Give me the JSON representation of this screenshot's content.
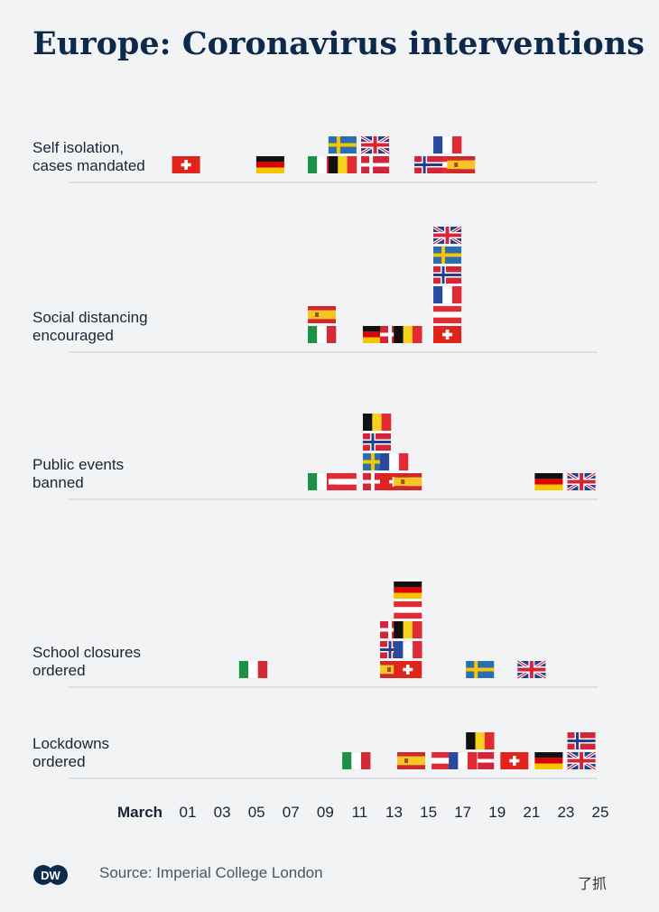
{
  "header": {
    "title": "Europe: Coronavirus interventions"
  },
  "footer": {
    "source": "Source: Imperial College London",
    "logo_text": "DW",
    "watermark": "了抓"
  },
  "flag_colors": {
    "switzerland": "#e1241b",
    "germany": [
      "#111111",
      "#dd0000",
      "#f6c700"
    ],
    "italy": [
      "#1d9143",
      "#ffffff",
      "#d32b36"
    ],
    "belgium": [
      "#111111",
      "#f6d21c",
      "#e12b30"
    ],
    "sweden": [
      "#2a6db0",
      "#f6c700"
    ],
    "denmark": [
      "#d3243a",
      "#ffffff"
    ],
    "uk": [
      "#1f3f8f",
      "#ffffff",
      "#d3243a"
    ],
    "austria": [
      "#e12a36",
      "#ffffff"
    ],
    "france": [
      "#2a4aa0",
      "#ffffff",
      "#e12a36"
    ],
    "norway": [
      "#d3243a",
      "#ffffff",
      "#1f3f8f"
    ],
    "spain": [
      "#cf2a29",
      "#f7c624"
    ]
  },
  "chart_data": {
    "type": "scatter",
    "title": "Europe: Coronavirus interventions",
    "xlabel": "March",
    "x_ticks": [
      "01",
      "03",
      "05",
      "07",
      "09",
      "11",
      "13",
      "15",
      "17",
      "19",
      "21",
      "23",
      "25"
    ],
    "xlim": [
      0,
      25
    ],
    "categories": [
      "Self isolation, cases mandated",
      "Social distancing encouraged",
      "Public events banned",
      "School closures ordered",
      "Lockdowns ordered"
    ],
    "category_lines": [
      [
        "Self isolation,",
        "cases mandated"
      ],
      [
        "Social distancing",
        "encouraged"
      ],
      [
        "Public events",
        "banned"
      ],
      [
        "School closures",
        "ordered"
      ],
      [
        "Lockdowns",
        "ordered"
      ]
    ],
    "series": [
      {
        "category": "Self isolation, cases mandated",
        "points": [
          {
            "country": "switzerland",
            "march_day": 0.9
          },
          {
            "country": "germany",
            "march_day": 5.8
          },
          {
            "country": "italy",
            "march_day": 8.8
          },
          {
            "country": "belgium",
            "march_day": 10.0
          },
          {
            "country": "sweden",
            "march_day": 10.0
          },
          {
            "country": "denmark",
            "march_day": 11.9
          },
          {
            "country": "uk",
            "march_day": 11.9
          },
          {
            "country": "austria",
            "march_day": 16.1
          },
          {
            "country": "france",
            "march_day": 16.1
          },
          {
            "country": "norway",
            "march_day": 15.0
          },
          {
            "country": "spain",
            "march_day": 16.9
          }
        ]
      },
      {
        "category": "Social distancing encouraged",
        "points": [
          {
            "country": "italy",
            "march_day": 8.8
          },
          {
            "country": "spain",
            "march_day": 8.8
          },
          {
            "country": "germany",
            "march_day": 12.0
          },
          {
            "country": "denmark",
            "march_day": 13.0
          },
          {
            "country": "belgium",
            "march_day": 13.8
          },
          {
            "country": "switzerland",
            "march_day": 16.1
          },
          {
            "country": "austria",
            "march_day": 16.1
          },
          {
            "country": "france",
            "march_day": 16.1
          },
          {
            "country": "norway",
            "march_day": 16.1
          },
          {
            "country": "sweden",
            "march_day": 16.1
          },
          {
            "country": "uk",
            "march_day": 16.1
          }
        ]
      },
      {
        "category": "Public events banned",
        "points": [
          {
            "country": "italy",
            "march_day": 8.8
          },
          {
            "country": "austria",
            "march_day": 10.0
          },
          {
            "country": "denmark",
            "march_day": 12.0
          },
          {
            "country": "sweden",
            "march_day": 12.0
          },
          {
            "country": "norway",
            "march_day": 12.0
          },
          {
            "country": "belgium",
            "march_day": 12.0
          },
          {
            "country": "switzerland",
            "march_day": 13.0
          },
          {
            "country": "france",
            "march_day": 13.0
          },
          {
            "country": "spain",
            "march_day": 13.8
          },
          {
            "country": "germany",
            "march_day": 22.0
          },
          {
            "country": "uk",
            "march_day": 23.9
          }
        ]
      },
      {
        "category": "School closures ordered",
        "points": [
          {
            "country": "italy",
            "march_day": 4.8
          },
          {
            "country": "spain",
            "march_day": 13.0
          },
          {
            "country": "norway",
            "march_day": 13.0
          },
          {
            "country": "denmark",
            "march_day": 13.0
          },
          {
            "country": "switzerland",
            "march_day": 13.8
          },
          {
            "country": "france",
            "march_day": 13.8
          },
          {
            "country": "belgium",
            "march_day": 13.8
          },
          {
            "country": "austria",
            "march_day": 13.8
          },
          {
            "country": "germany",
            "march_day": 13.8
          },
          {
            "country": "sweden",
            "march_day": 18.0
          },
          {
            "country": "uk",
            "march_day": 21.0
          }
        ]
      },
      {
        "category": "Lockdowns ordered",
        "points": [
          {
            "country": "italy",
            "march_day": 10.8
          },
          {
            "country": "spain",
            "march_day": 14.0
          },
          {
            "country": "austria",
            "march_day": 16.0
          },
          {
            "country": "denmark",
            "march_day": 18.0
          },
          {
            "country": "belgium",
            "march_day": 18.0
          },
          {
            "country": "france",
            "march_day": 17.0
          },
          {
            "country": "switzerland",
            "march_day": 20.0
          },
          {
            "country": "germany",
            "march_day": 22.0
          },
          {
            "country": "uk",
            "march_day": 23.9
          },
          {
            "country": "norway",
            "march_day": 23.9
          }
        ]
      }
    ]
  }
}
